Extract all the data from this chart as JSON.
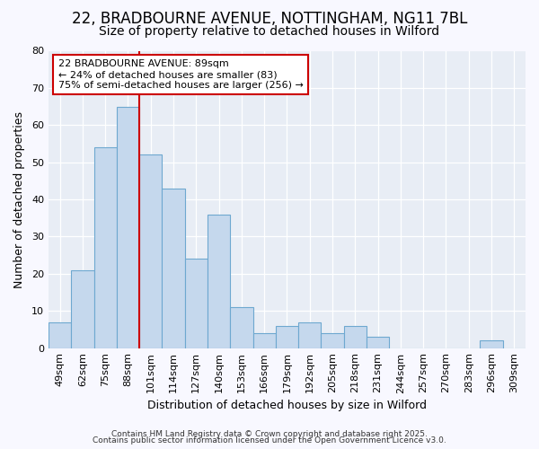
{
  "title_line1": "22, BRADBOURNE AVENUE, NOTTINGHAM, NG11 7BL",
  "title_line2": "Size of property relative to detached houses in Wilford",
  "xlabel": "Distribution of detached houses by size in Wilford",
  "ylabel": "Number of detached properties",
  "categories": [
    "49sqm",
    "62sqm",
    "75sqm",
    "88sqm",
    "101sqm",
    "114sqm",
    "127sqm",
    "140sqm",
    "153sqm",
    "166sqm",
    "179sqm",
    "192sqm",
    "205sqm",
    "218sqm",
    "231sqm",
    "244sqm",
    "257sqm",
    "270sqm",
    "283sqm",
    "296sqm",
    "309sqm"
  ],
  "values": [
    7,
    21,
    54,
    65,
    52,
    43,
    24,
    36,
    11,
    4,
    6,
    7,
    4,
    6,
    3,
    0,
    0,
    0,
    0,
    2,
    0
  ],
  "bar_color": "#c5d8ed",
  "bar_edge_color": "#6ea8d0",
  "red_line_color": "#cc0000",
  "annotation_text": "22 BRADBOURNE AVENUE: 89sqm\n← 24% of detached houses are smaller (83)\n75% of semi-detached houses are larger (256) →",
  "annotation_box_color": "#ffffff",
  "annotation_box_edge": "#cc0000",
  "ylim": [
    0,
    80
  ],
  "yticks": [
    0,
    10,
    20,
    30,
    40,
    50,
    60,
    70,
    80
  ],
  "plot_bg_color": "#e8edf5",
  "fig_bg_color": "#f8f8ff",
  "footer_line1": "Contains HM Land Registry data © Crown copyright and database right 2025.",
  "footer_line2": "Contains public sector information licensed under the Open Government Licence v3.0.",
  "title_fontsize": 12,
  "subtitle_fontsize": 10,
  "axis_label_fontsize": 9,
  "tick_fontsize": 8,
  "annot_fontsize": 8
}
